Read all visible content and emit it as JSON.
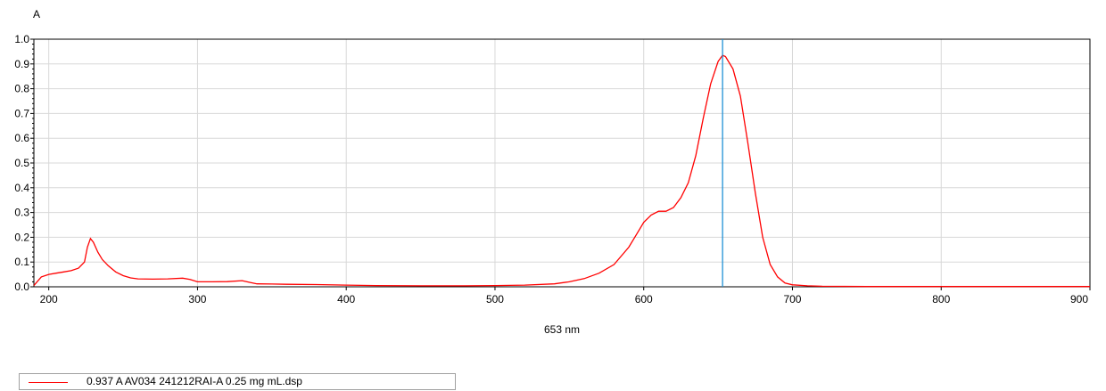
{
  "chart_data": {
    "type": "line",
    "ylabel": "A",
    "xlabel": "653 nm",
    "xlim": [
      190,
      900
    ],
    "ylim": [
      0,
      1.0
    ],
    "x_ticks": [
      200,
      300,
      400,
      500,
      600,
      700,
      800,
      900
    ],
    "y_ticks": [
      0.0,
      0.1,
      0.2,
      0.3,
      0.4,
      0.5,
      0.6,
      0.7,
      0.8,
      0.9,
      1.0
    ],
    "grid": true,
    "cursor_x": 653,
    "legend_placement": "bottom-left",
    "series": [
      {
        "name": "0.937 A  AV034 241212RAI-A 0.25 mg mL.dsp",
        "color": "#ff0000",
        "x": [
          190,
          195,
          200,
          205,
          210,
          215,
          220,
          224,
          226,
          228,
          230,
          233,
          236,
          240,
          245,
          250,
          255,
          260,
          270,
          280,
          290,
          295,
          300,
          310,
          320,
          330,
          335,
          340,
          350,
          360,
          380,
          400,
          420,
          450,
          480,
          500,
          520,
          540,
          550,
          560,
          570,
          580,
          590,
          595,
          600,
          605,
          610,
          615,
          620,
          625,
          630,
          635,
          640,
          645,
          650,
          653,
          655,
          660,
          665,
          670,
          675,
          680,
          685,
          690,
          695,
          700,
          710,
          720,
          750,
          800,
          850,
          900
        ],
        "y": [
          0.005,
          0.04,
          0.05,
          0.055,
          0.06,
          0.065,
          0.075,
          0.1,
          0.16,
          0.195,
          0.18,
          0.14,
          0.11,
          0.085,
          0.06,
          0.045,
          0.036,
          0.032,
          0.031,
          0.032,
          0.035,
          0.03,
          0.02,
          0.02,
          0.021,
          0.025,
          0.018,
          0.012,
          0.011,
          0.01,
          0.009,
          0.007,
          0.005,
          0.004,
          0.004,
          0.005,
          0.007,
          0.012,
          0.02,
          0.033,
          0.055,
          0.09,
          0.16,
          0.21,
          0.26,
          0.29,
          0.305,
          0.305,
          0.32,
          0.36,
          0.42,
          0.53,
          0.68,
          0.82,
          0.91,
          0.935,
          0.93,
          0.88,
          0.77,
          0.58,
          0.38,
          0.2,
          0.09,
          0.04,
          0.015,
          0.008,
          0.004,
          0.002,
          0.001,
          0.001,
          0.001,
          0.001
        ]
      }
    ]
  }
}
